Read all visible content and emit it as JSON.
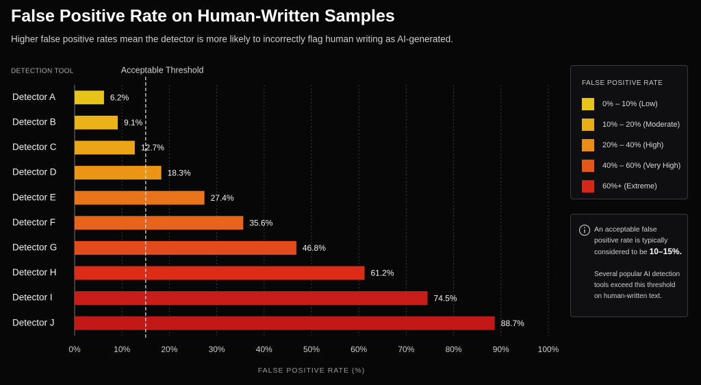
{
  "chart_data": {
    "type": "hbar",
    "title": "False Positive Rate on Human-Written Samples",
    "subtitle": "Higher false positive rates mean the detector is more likely to incorrectly flag human writing as AI-generated.",
    "y_axis_label": "DETECTION TOOL",
    "x_axis_label": "FALSE POSITIVE RATE (%)",
    "categories": [
      "Detector A",
      "Detector B",
      "Detector C",
      "Detector D",
      "Detector E",
      "Detector F",
      "Detector G",
      "Detector H",
      "Detector I",
      "Detector J"
    ],
    "values": [
      6.2,
      9.1,
      12.7,
      18.3,
      27.4,
      35.6,
      46.8,
      61.2,
      74.5,
      88.7
    ],
    "value_labels": [
      "6.2%",
      "9.1%",
      "12.7%",
      "18.3%",
      "27.4%",
      "35.6%",
      "46.8%",
      "61.2%",
      "74.5%",
      "88.7%"
    ],
    "colors": [
      "#e8c31a",
      "#eab417",
      "#eba516",
      "#ec9515",
      "#e9751a",
      "#e8641c",
      "#e44b1c",
      "#dc2c18",
      "#c91d1a",
      "#c21818"
    ],
    "xlim": [
      0,
      100
    ],
    "xticks": [
      {
        "value": 0,
        "label": "0%"
      },
      {
        "value": 10,
        "label": "10%"
      },
      {
        "value": 20,
        "label": "20%"
      },
      {
        "value": 30,
        "label": "30%"
      },
      {
        "value": 40,
        "label": "40%"
      },
      {
        "value": 50,
        "label": "50%"
      },
      {
        "value": 60,
        "label": "60%"
      },
      {
        "value": 70,
        "label": "70%"
      },
      {
        "value": 80,
        "label": "80%"
      },
      {
        "value": 90,
        "label": "90%"
      },
      {
        "value": 100,
        "label": "100%"
      }
    ],
    "grid": true,
    "threshold": {
      "label": "Acceptable Threshold",
      "value": 15
    },
    "legend": {
      "title": "FALSE POSITIVE RATE",
      "items": [
        {
          "label": "0% – 10% (Low)",
          "color": "#e8c31a"
        },
        {
          "label": "10% – 20% (Moderate)",
          "color": "#e9ae17"
        },
        {
          "label": "20% – 40% (High)",
          "color": "#e98c18"
        },
        {
          "label": "40% – 60% (Very High)",
          "color": "#e4561a"
        },
        {
          "label": "60%+ (Extreme)",
          "color": "#d42818"
        }
      ]
    },
    "note": {
      "text": "An acceptable false positive rate is typically considered to be",
      "emphasis": "10–15%.",
      "detail": "Several popular AI detection tools exceed this threshold on human-written text."
    }
  }
}
